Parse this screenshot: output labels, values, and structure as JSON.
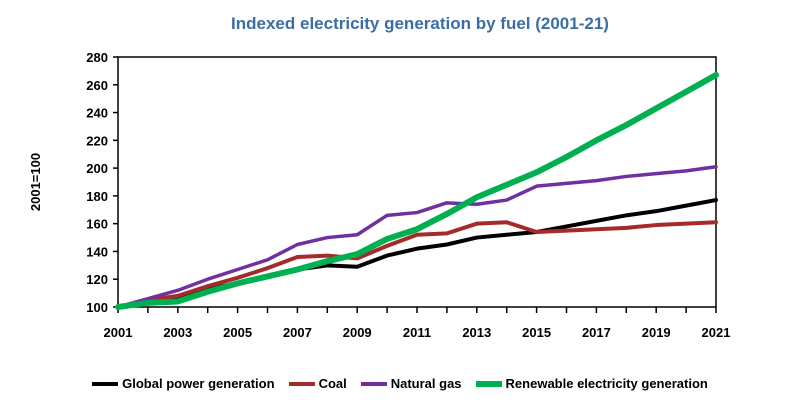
{
  "chart_data": {
    "type": "line",
    "title": "Indexed electricity generation by fuel (2001-21)",
    "ylabel": "2001=100",
    "xlabel": "",
    "ylim": [
      100,
      280
    ],
    "xlim": [
      2001,
      2021
    ],
    "yticks": [
      100,
      120,
      140,
      160,
      180,
      200,
      220,
      240,
      260,
      280
    ],
    "xticks": [
      2001,
      2003,
      2005,
      2007,
      2009,
      2011,
      2013,
      2015,
      2017,
      2019,
      2021
    ],
    "grid": false,
    "legend_position": "bottom",
    "x": [
      2001,
      2002,
      2003,
      2004,
      2005,
      2006,
      2007,
      2008,
      2009,
      2010,
      2011,
      2012,
      2013,
      2014,
      2015,
      2016,
      2017,
      2018,
      2019,
      2020,
      2021
    ],
    "series": [
      {
        "name": "Global power generation",
        "color": "#000000",
        "values": [
          100,
          104,
          106,
          113,
          117,
          122,
          127,
          130,
          129,
          137,
          142,
          145,
          150,
          152,
          154,
          158,
          162,
          166,
          169,
          173,
          177
        ]
      },
      {
        "name": "Coal",
        "color": "#a52a2a",
        "values": [
          100,
          105,
          108,
          115,
          121,
          128,
          136,
          137,
          135,
          144,
          152,
          153,
          160,
          161,
          154,
          155,
          156,
          157,
          159,
          160,
          161
        ]
      },
      {
        "name": "Natural gas",
        "color": "#7030a0",
        "values": [
          100,
          106,
          112,
          120,
          127,
          134,
          145,
          150,
          152,
          166,
          168,
          175,
          174,
          177,
          187,
          189,
          191,
          194,
          196,
          198,
          201
        ]
      },
      {
        "name": "Renewable electricity generation",
        "color": "#00b050",
        "values": [
          100,
          103,
          104,
          111,
          117,
          122,
          127,
          133,
          138,
          149,
          156,
          167,
          179,
          188,
          197,
          208,
          220,
          231,
          243,
          255,
          267
        ]
      }
    ]
  }
}
